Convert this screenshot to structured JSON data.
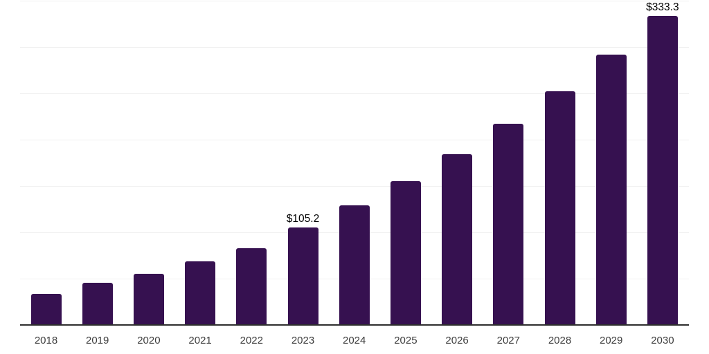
{
  "chart_data": {
    "type": "bar",
    "title": "",
    "xlabel": "",
    "ylabel": "",
    "categories": [
      "2018",
      "2019",
      "2020",
      "2021",
      "2022",
      "2023",
      "2024",
      "2025",
      "2026",
      "2027",
      "2028",
      "2029",
      "2030"
    ],
    "values": [
      33.6,
      45.5,
      55.2,
      69.0,
      82.8,
      105.2,
      129.1,
      155.2,
      184.3,
      217.2,
      252.2,
      291.8,
      333.3
    ],
    "data_labels": {
      "2023": "$105.2",
      "2030": "$333.3"
    },
    "ylim": [
      0,
      350
    ],
    "grid": true,
    "grid_interval": 50,
    "legend": "none",
    "colors": {
      "bar": "#361150",
      "axis": "#2e2e2e",
      "gridline": "#f0f0f0",
      "tick_label": "#3d3d3d",
      "data_label": "#000000",
      "background": "#ffffff"
    }
  }
}
